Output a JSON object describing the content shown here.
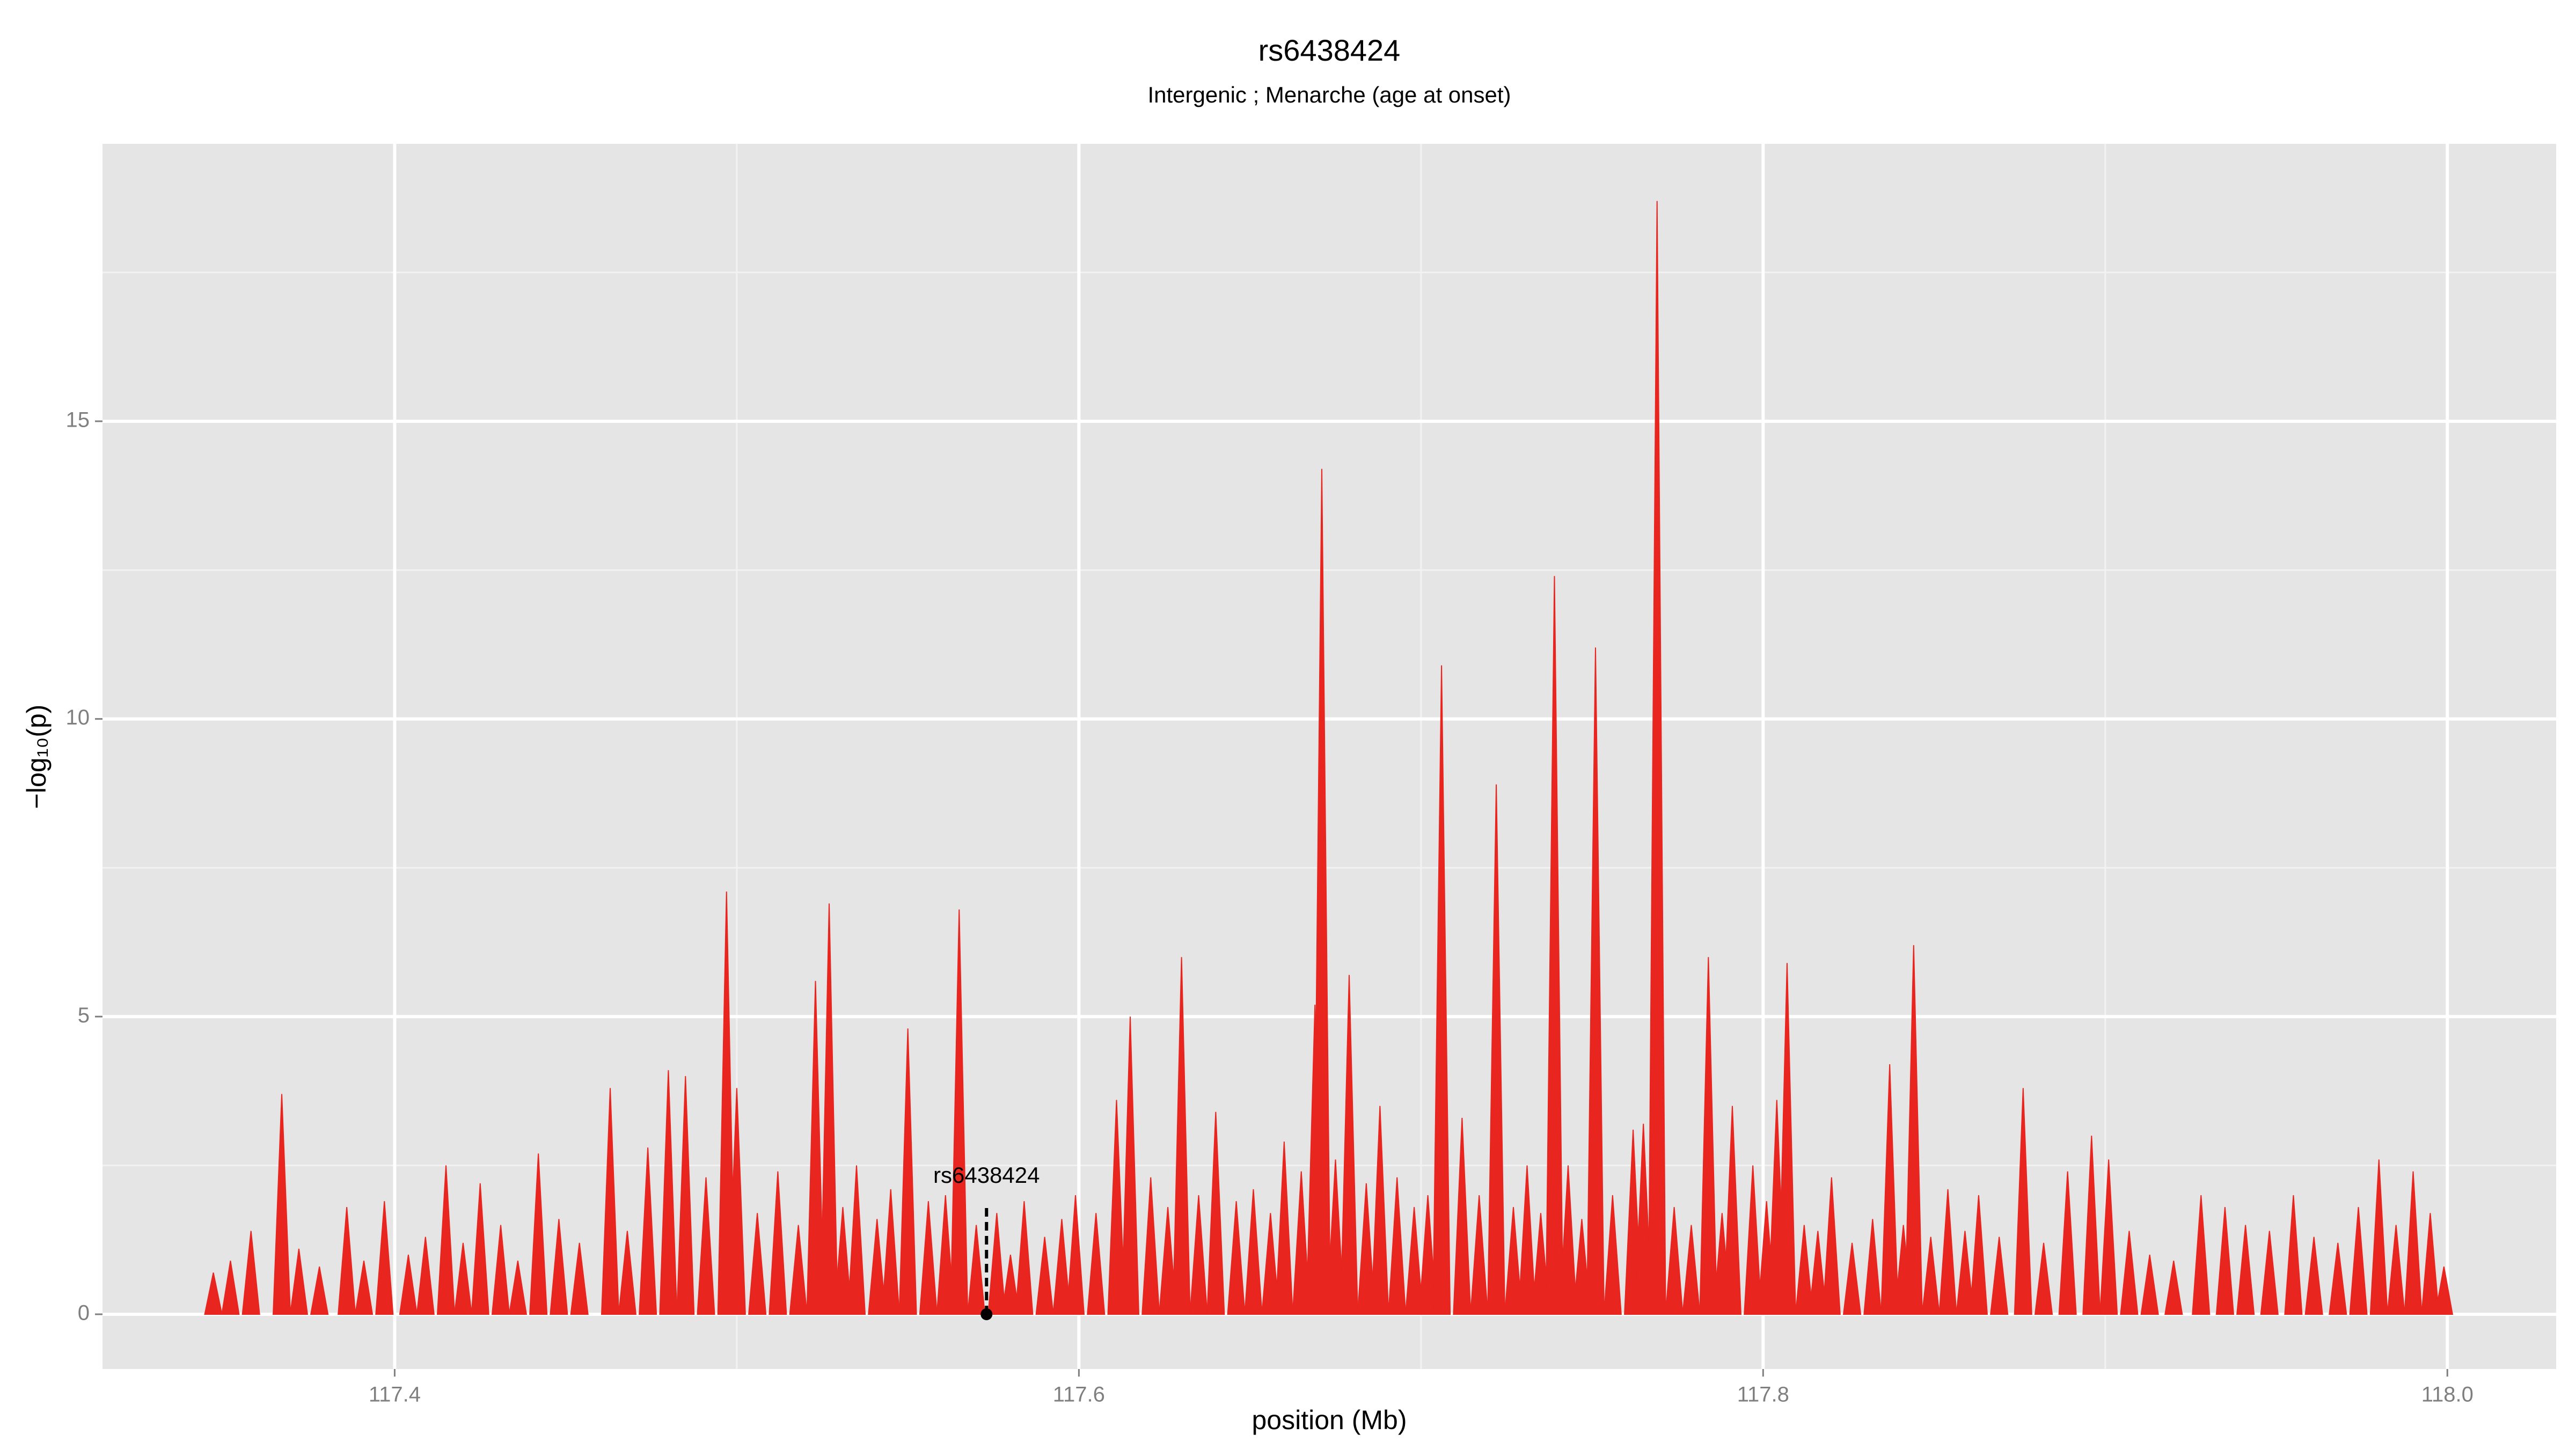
{
  "chart_data": {
    "type": "spike",
    "title": "rs6438424",
    "subtitle": "Intergenic ; Menarche (age at onset)",
    "x_label": "position (Mb)",
    "y_label": "−log₁₀(p)",
    "color": "#e8251f",
    "grid": true,
    "annotation": {
      "text": "rs6438424",
      "x": 117.573
    },
    "xlim": [
      117.3146,
      118.0318
    ],
    "ylim": [
      -0.92,
      19.66
    ],
    "xticks": [
      117.4,
      117.6,
      117.8,
      {
        "value": 118,
        "label": "118.0"
      }
    ],
    "yticks": [
      0,
      5,
      10,
      15
    ],
    "x": [
      117.347,
      117.352,
      117.358,
      117.367,
      117.372,
      117.378,
      117.386,
      117.391,
      117.397,
      117.404,
      117.409,
      117.415,
      117.42,
      117.425,
      117.431,
      117.436,
      117.442,
      117.448,
      117.454,
      117.463,
      117.468,
      117.474,
      117.48,
      117.485,
      117.491,
      117.497,
      117.5,
      117.506,
      117.512,
      117.518,
      117.523,
      117.527,
      117.531,
      117.535,
      117.541,
      117.545,
      117.55,
      117.556,
      117.561,
      117.565,
      117.57,
      117.576,
      117.58,
      117.584,
      117.59,
      117.595,
      117.599,
      117.605,
      117.611,
      117.615,
      117.621,
      117.626,
      117.63,
      117.635,
      117.64,
      117.646,
      117.651,
      117.656,
      117.66,
      117.665,
      117.669,
      117.671,
      117.675,
      117.679,
      117.684,
      117.688,
      117.693,
      117.698,
      117.702,
      117.706,
      117.712,
      117.717,
      117.722,
      117.727,
      117.731,
      117.735,
      117.739,
      117.743,
      117.747,
      117.751,
      117.756,
      117.762,
      117.765,
      117.769,
      117.774,
      117.779,
      117.784,
      117.788,
      117.791,
      117.797,
      117.801,
      117.804,
      117.807,
      117.812,
      117.816,
      117.82,
      117.826,
      117.832,
      117.837,
      117.841,
      117.844,
      117.849,
      117.854,
      117.859,
      117.863,
      117.869,
      117.876,
      117.882,
      117.889,
      117.896,
      117.901,
      117.907,
      117.913,
      117.92,
      117.928,
      117.935,
      117.941,
      117.948,
      117.955,
      117.961,
      117.968,
      117.974,
      117.98,
      117.985,
      117.99,
      117.995,
      117.999
    ],
    "values": [
      0.7,
      0.9,
      1.4,
      3.7,
      1.1,
      0.8,
      1.8,
      0.9,
      1.9,
      1.0,
      1.3,
      2.5,
      1.2,
      2.2,
      1.5,
      0.9,
      2.7,
      1.6,
      1.2,
      3.8,
      1.4,
      2.8,
      4.1,
      4.0,
      2.3,
      7.1,
      3.8,
      1.7,
      2.4,
      1.5,
      5.6,
      6.9,
      1.8,
      2.5,
      1.6,
      2.1,
      4.8,
      1.9,
      2.0,
      6.8,
      1.5,
      1.7,
      1.0,
      1.9,
      1.3,
      1.6,
      2.0,
      1.7,
      3.6,
      5.0,
      2.3,
      1.8,
      6.0,
      2.0,
      3.4,
      1.9,
      2.1,
      1.7,
      2.9,
      2.4,
      5.2,
      14.2,
      2.6,
      5.7,
      2.2,
      3.5,
      2.3,
      1.8,
      2.0,
      10.9,
      3.3,
      2.0,
      8.9,
      1.8,
      2.5,
      1.7,
      12.4,
      2.5,
      1.6,
      11.2,
      2.0,
      3.1,
      3.2,
      18.7,
      1.8,
      1.5,
      6.0,
      1.7,
      3.5,
      2.5,
      1.9,
      3.6,
      5.9,
      1.5,
      1.4,
      2.3,
      1.2,
      1.6,
      4.2,
      1.5,
      6.2,
      1.3,
      2.1,
      1.4,
      2.0,
      1.3,
      3.8,
      1.2,
      2.4,
      3.0,
      2.6,
      1.4,
      1.0,
      0.9,
      2.0,
      1.8,
      1.5,
      1.4,
      2.0,
      1.3,
      1.2,
      1.8,
      2.6,
      1.5,
      2.4,
      1.7,
      0.8
    ]
  }
}
